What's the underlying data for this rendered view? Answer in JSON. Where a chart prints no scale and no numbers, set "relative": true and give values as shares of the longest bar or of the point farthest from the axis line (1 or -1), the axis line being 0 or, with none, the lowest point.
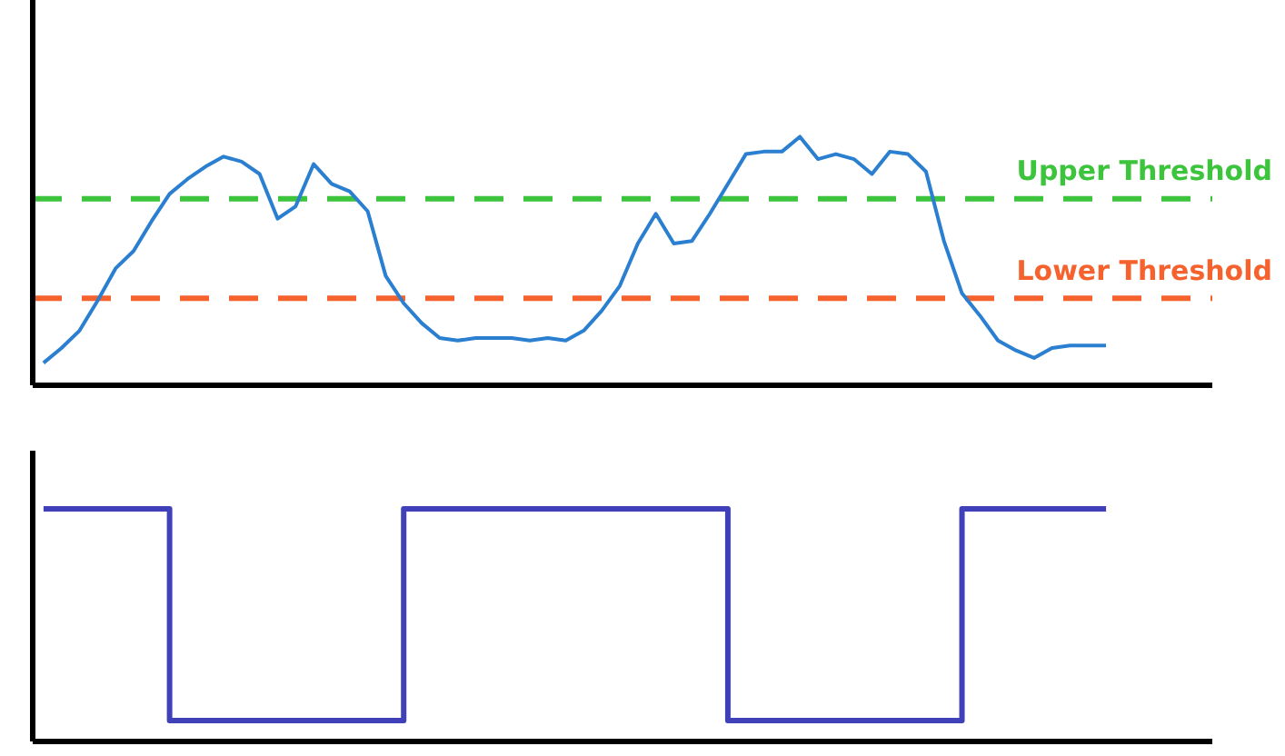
{
  "chart_data": [
    {
      "type": "line",
      "relative": true,
      "categories": [
        null,
        null,
        null,
        null,
        null,
        null,
        null,
        null,
        null,
        null,
        null,
        null,
        null,
        null,
        null,
        null,
        null,
        null,
        null,
        null,
        null,
        null,
        null,
        null,
        null,
        null,
        null,
        null,
        null,
        null,
        null,
        null,
        null,
        null,
        null,
        null,
        null,
        null,
        null,
        null,
        null,
        null,
        null,
        null,
        null,
        null,
        null,
        null,
        null,
        null,
        null,
        null,
        null,
        null,
        null,
        null,
        null,
        null,
        null,
        null
      ],
      "series": [
        {
          "color": "#2a7fd0",
          "values": [
            0.09,
            0.15,
            0.22,
            0.34,
            0.47,
            0.54,
            0.66,
            0.77,
            0.83,
            0.88,
            0.92,
            0.9,
            0.85,
            0.67,
            0.72,
            0.89,
            0.81,
            0.78,
            0.7,
            0.44,
            0.33,
            0.25,
            0.19,
            0.18,
            0.19,
            0.19,
            0.19,
            0.18,
            0.19,
            0.18,
            0.22,
            0.3,
            0.4,
            0.57,
            0.69,
            0.57,
            0.58,
            0.69,
            0.81,
            0.93,
            0.94,
            0.94,
            1.0,
            0.91,
            0.93,
            0.91,
            0.85,
            0.94,
            0.93,
            0.86,
            0.58,
            0.37,
            0.28,
            0.18,
            0.14,
            0.11,
            0.15,
            0.16,
            0.16,
            0.16
          ]
        }
      ],
      "ref_lines": [
        {
          "axis": "y",
          "value": 0.75,
          "label": "Upper Threshold",
          "color": "#3cc43c",
          "line_style": "dashed"
        },
        {
          "axis": "y",
          "value": 0.35,
          "label": "Lower Threshold",
          "color": "#f5622d",
          "line_style": "dashed"
        }
      ],
      "legend": false,
      "grid": false,
      "marker": "none"
    },
    {
      "type": "step",
      "relative": true,
      "categories": [
        null,
        null,
        null,
        null,
        null,
        null,
        null,
        null,
        null,
        null,
        null,
        null,
        null,
        null,
        null,
        null,
        null,
        null,
        null,
        null,
        null,
        null,
        null,
        null,
        null,
        null,
        null,
        null,
        null,
        null,
        null,
        null,
        null,
        null,
        null,
        null,
        null,
        null,
        null,
        null,
        null,
        null,
        null,
        null,
        null,
        null,
        null,
        null,
        null,
        null,
        null,
        null,
        null,
        null,
        null,
        null,
        null,
        null,
        null,
        null
      ],
      "series": [
        {
          "color": "#4040b8",
          "values": [
            1,
            1,
            1,
            1,
            1,
            1,
            1,
            0.09,
            0.09,
            0.09,
            0.09,
            0.09,
            0.09,
            0.09,
            0.09,
            0.09,
            0.09,
            0.09,
            0.09,
            0.09,
            1,
            1,
            1,
            1,
            1,
            1,
            1,
            1,
            1,
            1,
            1,
            1,
            1,
            1,
            1,
            1,
            1,
            1,
            0.09,
            0.09,
            0.09,
            0.09,
            0.09,
            0.09,
            0.09,
            0.09,
            0.09,
            0.09,
            0.09,
            0.09,
            0.09,
            1,
            1,
            1,
            1,
            1,
            1,
            1,
            1,
            1
          ]
        }
      ],
      "legend": false,
      "grid": false,
      "marker": "none"
    }
  ]
}
